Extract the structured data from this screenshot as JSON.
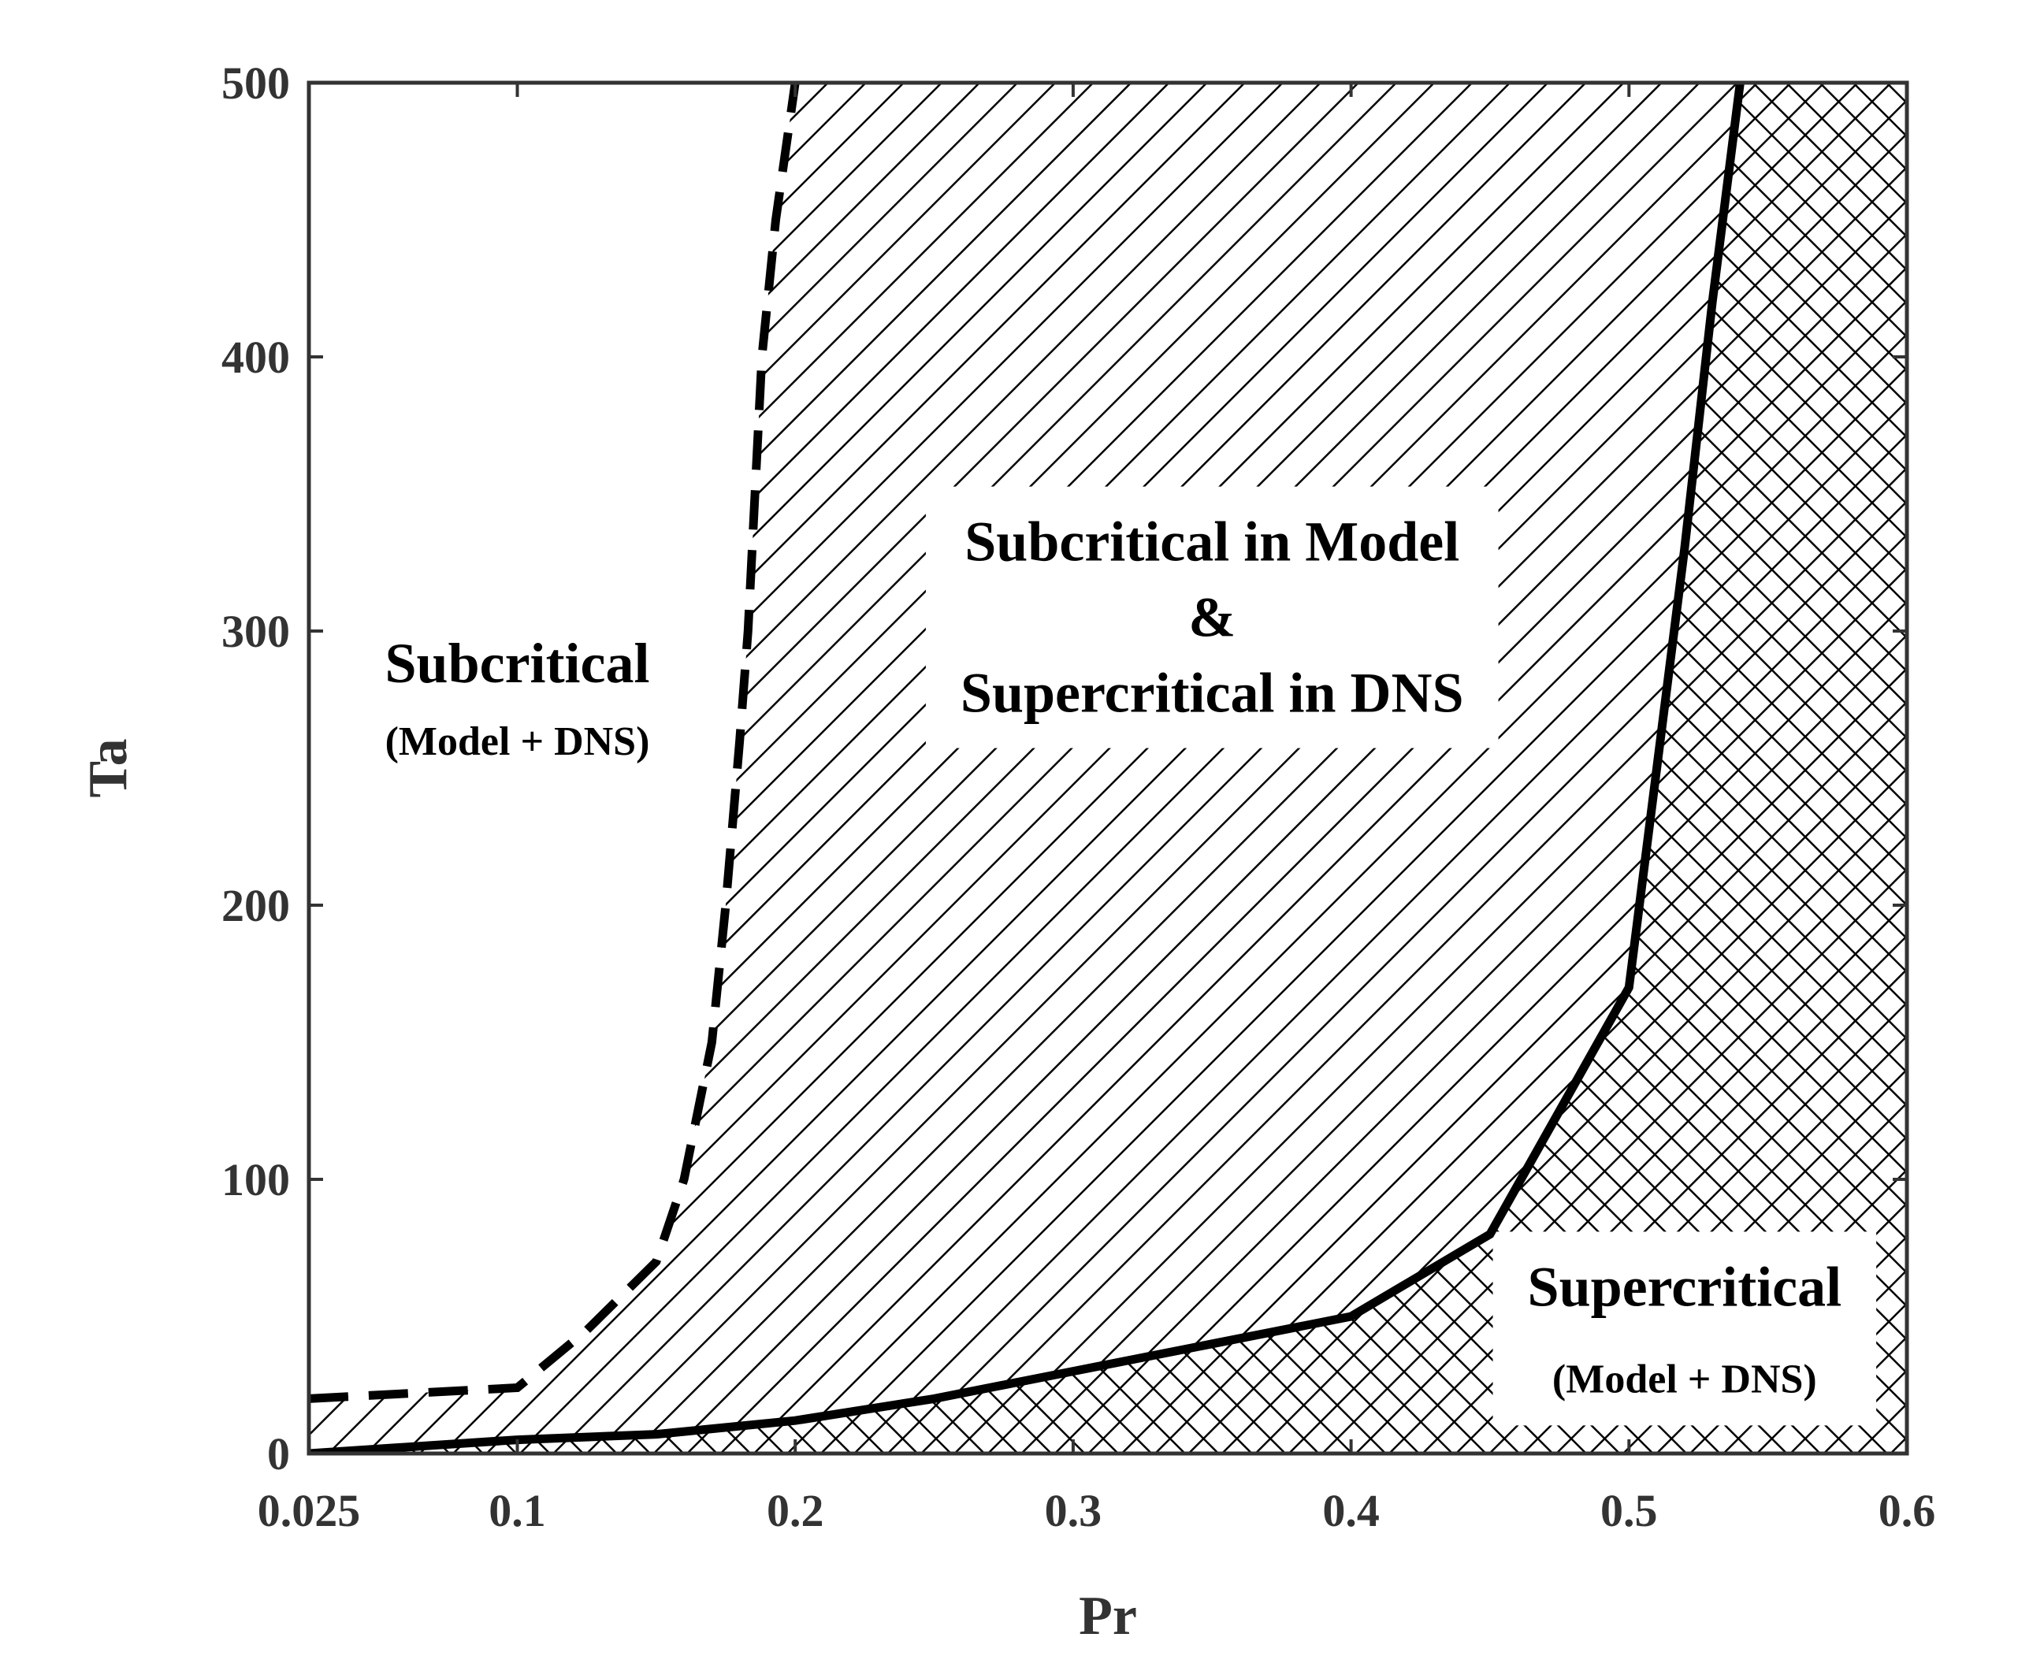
{
  "chart_data": {
    "type": "area",
    "xlabel": "Pr",
    "ylabel": "Ta",
    "xlim": [
      0.025,
      0.6
    ],
    "ylim": [
      0,
      500
    ],
    "x_ticks": [
      0.025,
      0.1,
      0.2,
      0.3,
      0.4,
      0.5,
      0.6
    ],
    "x_tick_labels": [
      "0.025",
      "0.1",
      "0.2",
      "0.3",
      "0.4",
      "0.5",
      "0.6"
    ],
    "y_ticks": [
      0,
      100,
      200,
      300,
      400,
      500
    ],
    "y_tick_labels": [
      "0",
      "100",
      "200",
      "300",
      "400",
      "500"
    ],
    "grid": false,
    "series": [
      {
        "style": "dashed",
        "points": [
          [
            0.025,
            20
          ],
          [
            0.1,
            24
          ],
          [
            0.125,
            45
          ],
          [
            0.15,
            70
          ],
          [
            0.16,
            100
          ],
          [
            0.17,
            150
          ],
          [
            0.175,
            200
          ],
          [
            0.18,
            260
          ],
          [
            0.183,
            300
          ],
          [
            0.188,
            400
          ],
          [
            0.193,
            450
          ],
          [
            0.2,
            500
          ]
        ]
      },
      {
        "style": "solid",
        "points": [
          [
            0.025,
            0
          ],
          [
            0.1,
            5
          ],
          [
            0.15,
            7
          ],
          [
            0.2,
            12
          ],
          [
            0.25,
            20
          ],
          [
            0.3,
            30
          ],
          [
            0.35,
            40
          ],
          [
            0.4,
            50
          ],
          [
            0.425,
            65
          ],
          [
            0.45,
            80
          ],
          [
            0.5,
            170
          ],
          [
            0.51,
            250
          ],
          [
            0.52,
            330
          ],
          [
            0.53,
            420
          ],
          [
            0.54,
            500
          ]
        ]
      }
    ],
    "annotations": [
      {
        "lines": [
          "Subcritical",
          "(Model + DNS)"
        ],
        "x": 0.1,
        "y": 275
      },
      {
        "lines": [
          "Subcritical in Model",
          "&",
          "Supercritical in DNS"
        ],
        "x": 0.35,
        "y": 305
      },
      {
        "lines": [
          "Supercritical",
          "(Model + DNS)"
        ],
        "x": 0.52,
        "y": 45
      }
    ]
  }
}
